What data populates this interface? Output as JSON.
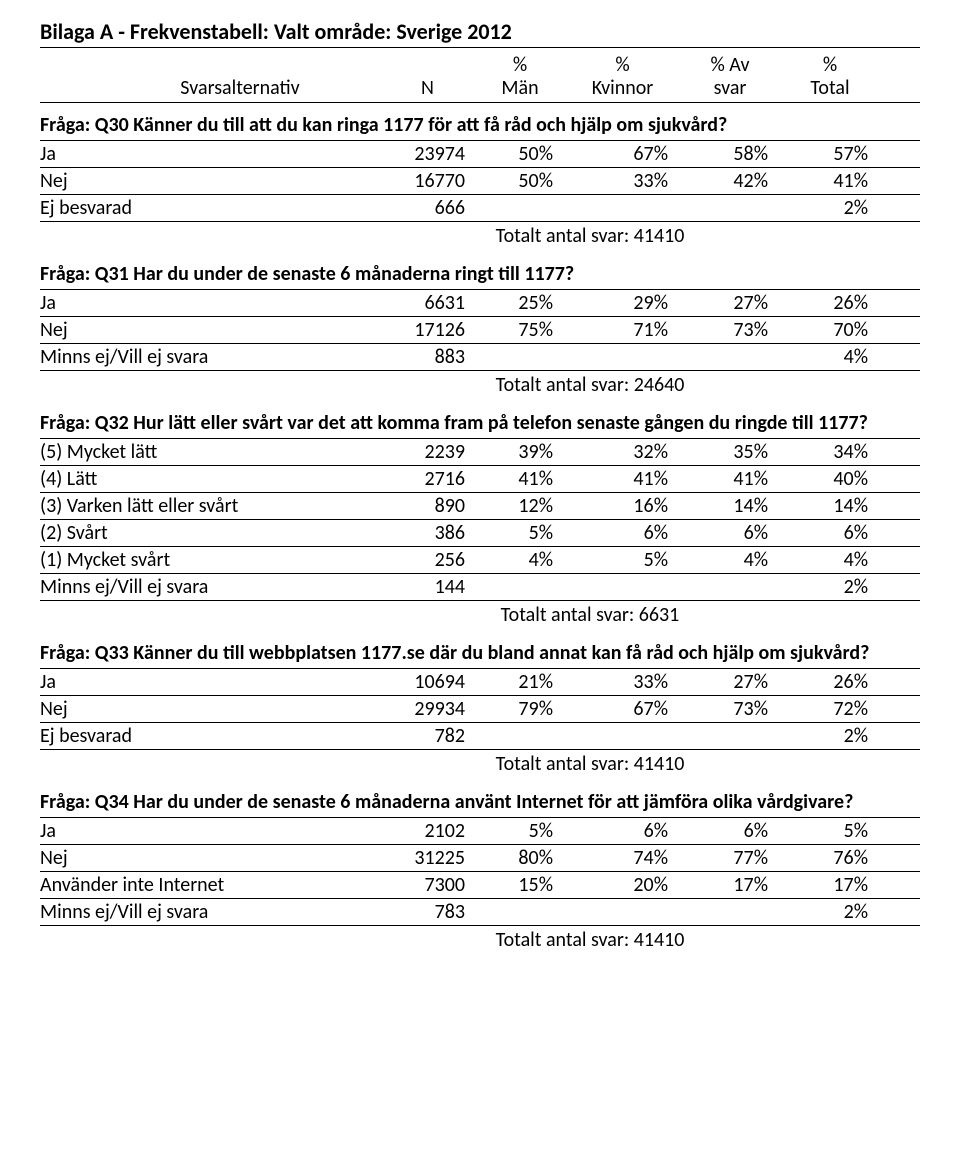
{
  "title": "Bilaga A - Frekvenstabell: Valt område: Sverige 2012",
  "headers": {
    "alt": "Svarsalternativ",
    "n": "N",
    "man_top": "%",
    "man_bot": "Män",
    "kvin_top": "%",
    "kvin_bot": "Kvinnor",
    "av_top": "% Av",
    "av_bot": "svar",
    "tot_top": "%",
    "tot_bot": "Total"
  },
  "q30": {
    "text": "Fråga: Q30 Känner du till att du kan ringa 1177 för att få råd och hjälp om sjukvård?",
    "rows": [
      {
        "label": "Ja",
        "n": "23974",
        "man": "50%",
        "kvin": "67%",
        "av": "58%",
        "tot": "57%"
      },
      {
        "label": "Nej",
        "n": "16770",
        "man": "50%",
        "kvin": "33%",
        "av": "42%",
        "tot": "41%"
      },
      {
        "label": "Ej besvarad",
        "n": "666",
        "man": "",
        "kvin": "",
        "av": "",
        "tot": "2%"
      }
    ],
    "total": "Totalt antal svar: 41410"
  },
  "q31": {
    "text": "Fråga: Q31 Har du under de senaste 6 månaderna ringt till 1177?",
    "rows": [
      {
        "label": "Ja",
        "n": "6631",
        "man": "25%",
        "kvin": "29%",
        "av": "27%",
        "tot": "26%"
      },
      {
        "label": "Nej",
        "n": "17126",
        "man": "75%",
        "kvin": "71%",
        "av": "73%",
        "tot": "70%"
      },
      {
        "label": "Minns ej/Vill ej svara",
        "n": "883",
        "man": "",
        "kvin": "",
        "av": "",
        "tot": "4%"
      }
    ],
    "total": "Totalt antal svar: 24640"
  },
  "q32": {
    "text": "Fråga: Q32 Hur lätt eller svårt var det att komma fram på telefon senaste gången du ringde till 1177?",
    "rows": [
      {
        "label": "(5) Mycket lätt",
        "n": "2239",
        "man": "39%",
        "kvin": "32%",
        "av": "35%",
        "tot": "34%"
      },
      {
        "label": "(4) Lätt",
        "n": "2716",
        "man": "41%",
        "kvin": "41%",
        "av": "41%",
        "tot": "40%"
      },
      {
        "label": "(3) Varken lätt eller svårt",
        "n": "890",
        "man": "12%",
        "kvin": "16%",
        "av": "14%",
        "tot": "14%"
      },
      {
        "label": "(2) Svårt",
        "n": "386",
        "man": "5%",
        "kvin": "6%",
        "av": "6%",
        "tot": "6%"
      },
      {
        "label": "(1) Mycket svårt",
        "n": "256",
        "man": "4%",
        "kvin": "5%",
        "av": "4%",
        "tot": "4%"
      },
      {
        "label": "Minns ej/Vill ej svara",
        "n": "144",
        "man": "",
        "kvin": "",
        "av": "",
        "tot": "2%"
      }
    ],
    "total": "Totalt antal svar: 6631"
  },
  "q33": {
    "text": "Fråga: Q33 Känner du till webbplatsen 1177.se där du bland annat kan få råd och hjälp om sjukvård?",
    "rows": [
      {
        "label": "Ja",
        "n": "10694",
        "man": "21%",
        "kvin": "33%",
        "av": "27%",
        "tot": "26%"
      },
      {
        "label": "Nej",
        "n": "29934",
        "man": "79%",
        "kvin": "67%",
        "av": "73%",
        "tot": "72%"
      },
      {
        "label": "Ej besvarad",
        "n": "782",
        "man": "",
        "kvin": "",
        "av": "",
        "tot": "2%"
      }
    ],
    "total": "Totalt antal svar: 41410"
  },
  "q34": {
    "text": "Fråga: Q34 Har du under de senaste 6 månaderna använt Internet för att jämföra olika vårdgivare?",
    "rows": [
      {
        "label": "Ja",
        "n": "2102",
        "man": "5%",
        "kvin": "6%",
        "av": "6%",
        "tot": "5%"
      },
      {
        "label": "Nej",
        "n": "31225",
        "man": "80%",
        "kvin": "74%",
        "av": "77%",
        "tot": "76%"
      },
      {
        "label": "Använder inte Internet",
        "n": "7300",
        "man": "15%",
        "kvin": "20%",
        "av": "17%",
        "tot": "17%"
      },
      {
        "label": "Minns ej/Vill ej svara",
        "n": "783",
        "man": "",
        "kvin": "",
        "av": "",
        "tot": "2%"
      }
    ],
    "total": "Totalt antal svar: 41410"
  }
}
